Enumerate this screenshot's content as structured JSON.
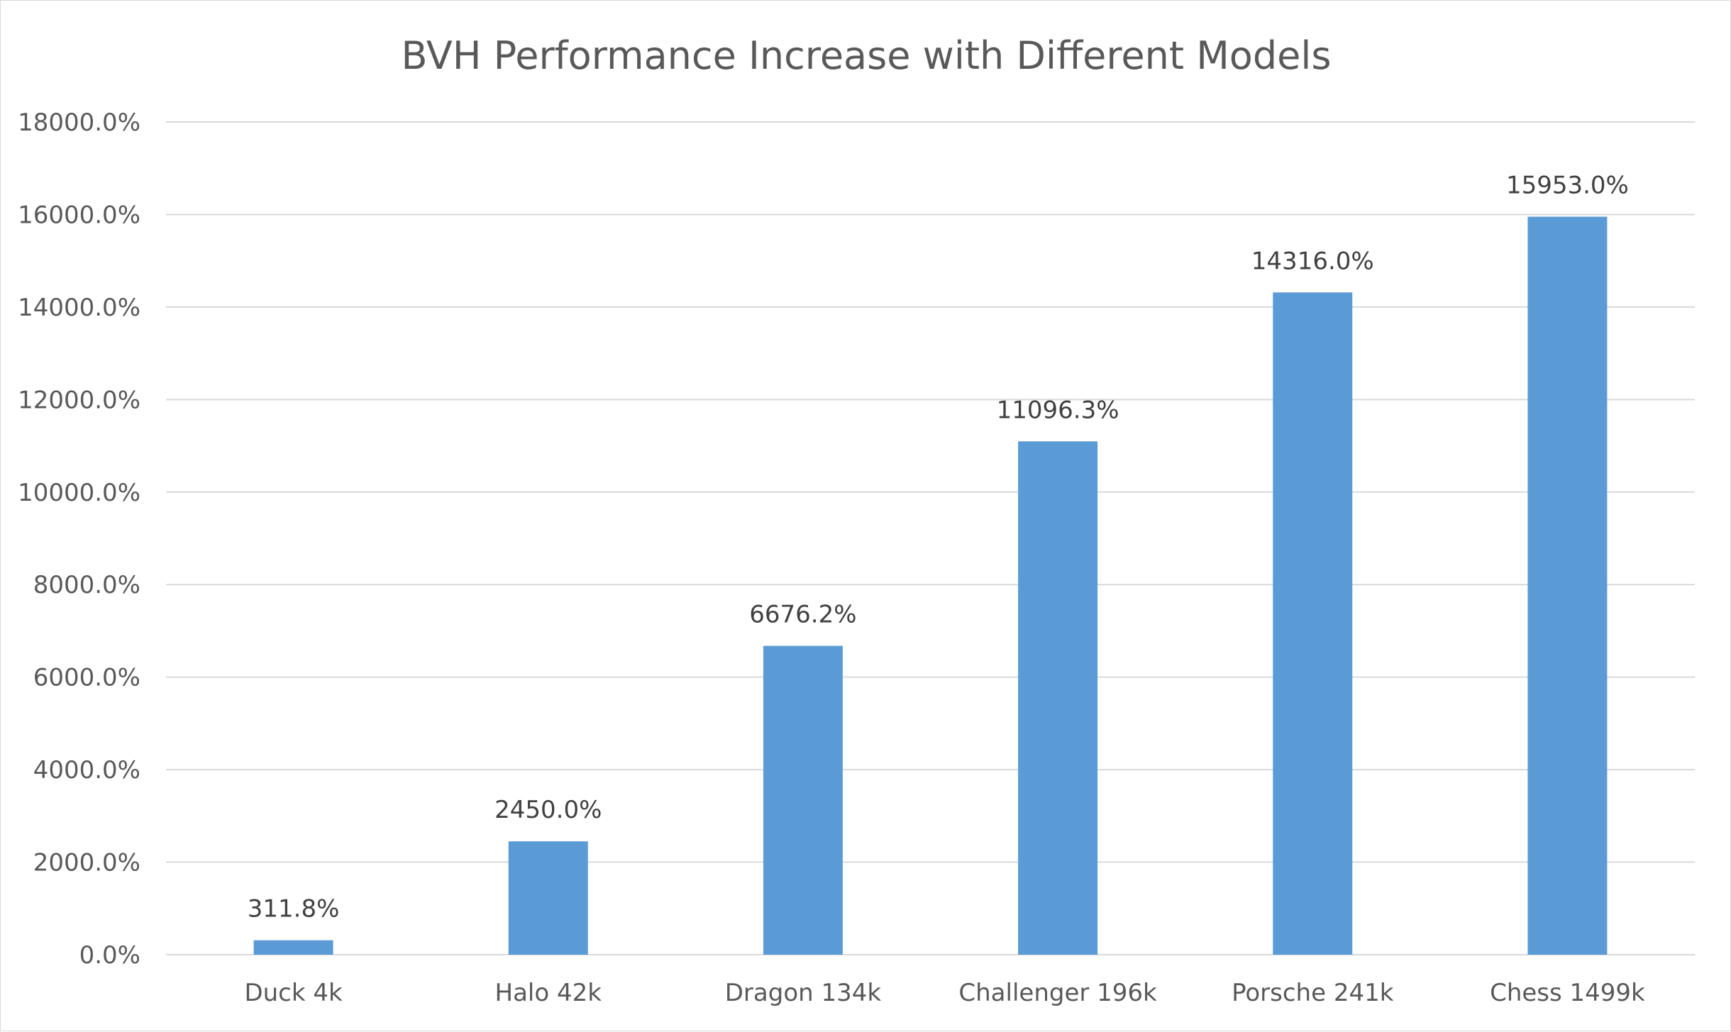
{
  "chart_data": {
    "type": "bar",
    "title": "BVH Performance Increase with Different Models",
    "xlabel": "",
    "ylabel": "",
    "categories": [
      "Duck 4k",
      "Halo 42k",
      "Dragon 134k",
      "Challenger 196k",
      "Porsche 241k",
      "Chess 1499k"
    ],
    "values": [
      311.8,
      2450.0,
      6676.2,
      11096.3,
      14316.0,
      15953.0
    ],
    "data_labels": [
      "311.8%",
      "2450.0%",
      "6676.2%",
      "11096.3%",
      "14316.0%",
      "15953.0%"
    ],
    "ylim": [
      0,
      18000
    ],
    "y_ticks": [
      0,
      2000,
      4000,
      6000,
      8000,
      10000,
      12000,
      14000,
      16000,
      18000
    ],
    "y_tick_labels": [
      "0.0%",
      "2000.0%",
      "4000.0%",
      "6000.0%",
      "8000.0%",
      "10000.0%",
      "12000.0%",
      "14000.0%",
      "16000.0%",
      "18000.0%"
    ],
    "grid": true,
    "legend": "none",
    "bar_color": "#5b9bd5"
  }
}
